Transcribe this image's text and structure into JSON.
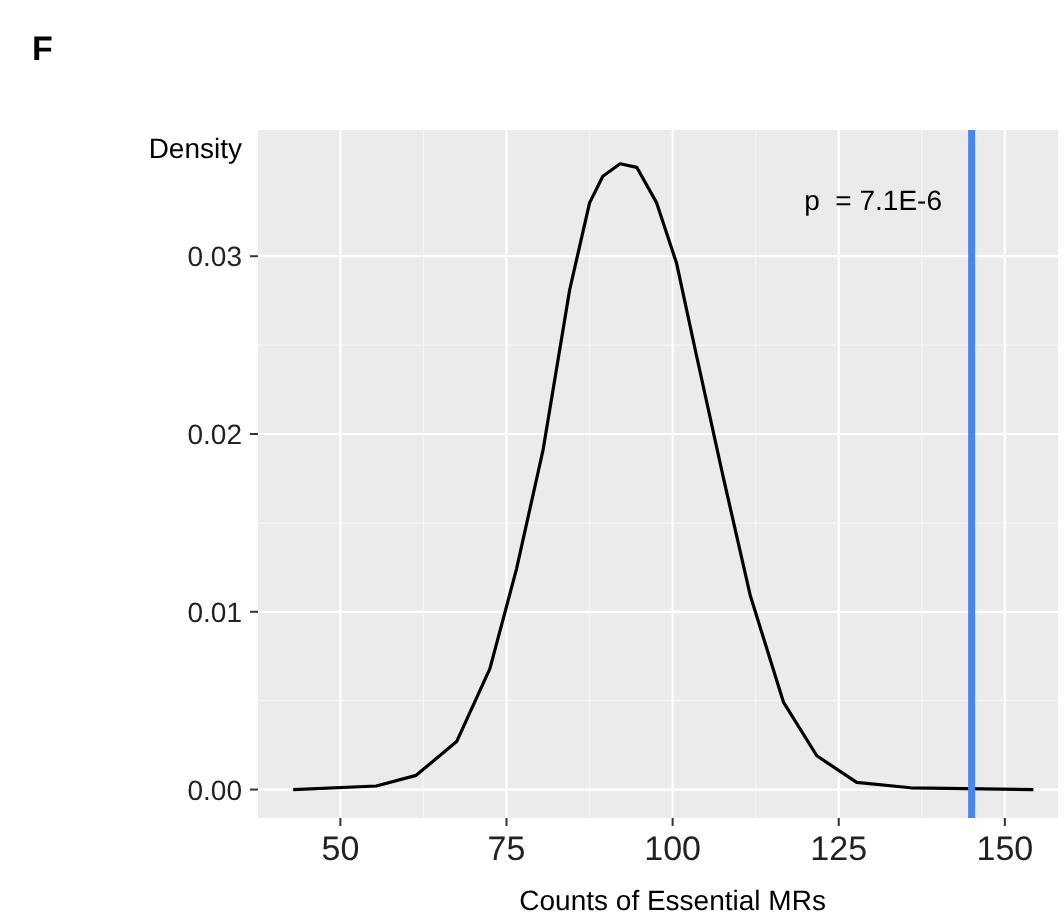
{
  "chart_data": {
    "type": "line",
    "title": "F",
    "xlabel": "Counts of Essential MRs",
    "ylabel": "Density",
    "x": [
      42.9,
      55.4,
      61.4,
      67.5,
      72.5,
      76.5,
      80.5,
      84.5,
      87.5,
      89.5,
      92.1,
      94.6,
      97.6,
      100.6,
      103.6,
      107.6,
      111.7,
      116.7,
      121.7,
      127.7,
      135.8,
      154.3
    ],
    "series": [
      {
        "color": "#000000",
        "values": [
          0,
          0.0002,
          0.0008,
          0.0027,
          0.0068,
          0.0124,
          0.0191,
          0.0281,
          0.033,
          0.0345,
          0.0352,
          0.035,
          0.033,
          0.0296,
          0.0244,
          0.0176,
          0.0109,
          0.0049,
          0.0019,
          0.0004,
          0.0001,
          0
        ]
      }
    ],
    "xlim": [
      37.6,
      158
    ],
    "xticks": [
      50,
      75,
      100,
      125,
      150
    ],
    "ylim": [
      -0.0016,
      0.0371
    ],
    "yticks": [
      {
        "value": 0,
        "label": "0.00"
      },
      {
        "value": 0.01,
        "label": "0.01"
      },
      {
        "value": 0.02,
        "label": "0.02"
      },
      {
        "value": 0.03,
        "label": "0.03"
      }
    ],
    "grid": true,
    "marker": "none",
    "line_style": "solid",
    "ref_lines": [
      {
        "axis": "x",
        "value": 145,
        "color": "#4a86f0"
      }
    ],
    "annotations": [
      "p  = 7.1E-6"
    ]
  }
}
